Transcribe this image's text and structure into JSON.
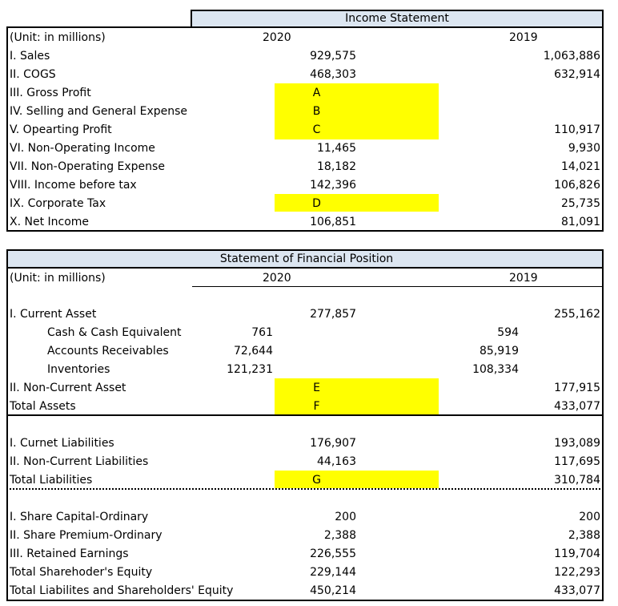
{
  "income": {
    "title": "Income Statement",
    "unit": "(Unit: in millions)",
    "col2020": "2020",
    "col2019": "2019",
    "rows": [
      {
        "label": "I. Sales",
        "v2020": "929,575",
        "v2019": "1,063,886"
      },
      {
        "label": "II. COGS",
        "v2020": "468,303",
        "v2019": "632,914"
      },
      {
        "label": "III. Gross Profit",
        "v2020": "A",
        "v2019": ""
      },
      {
        "label": "IV. Selling and General Expense",
        "v2020": "B",
        "v2019": ""
      },
      {
        "label": "V. Opearting Profit",
        "v2020": "C",
        "v2019": "110,917"
      },
      {
        "label": "VI. Non-Operating Income",
        "v2020": "11,465",
        "v2019": "9,930"
      },
      {
        "label": "VII. Non-Operating Expense",
        "v2020": "18,182",
        "v2019": "14,021"
      },
      {
        "label": "VIII. Income before tax",
        "v2020": "142,396",
        "v2019": "106,826"
      },
      {
        "label": "IX. Corporate Tax",
        "v2020": "D",
        "v2019": "25,735"
      },
      {
        "label": "X. Net Income",
        "v2020": "106,851",
        "v2019": "81,091"
      }
    ]
  },
  "position": {
    "title": "Statement of Financial Position",
    "unit": "(Unit: in millions)",
    "col2020": "2020",
    "col2019": "2019",
    "assets": [
      {
        "label": "I. Current Asset",
        "v2020": "277,857",
        "v2019": "255,162"
      },
      {
        "label": "Cash & Cash Equivalent",
        "sub2020": "761",
        "sub2019": "594"
      },
      {
        "label": "Accounts Receivables",
        "sub2020": "72,644",
        "sub2019": "85,919"
      },
      {
        "label": "Inventories",
        "sub2020": "121,231",
        "sub2019": "108,334"
      },
      {
        "label": "II. Non-Current Asset",
        "v2020": "E",
        "v2019": "177,915"
      },
      {
        "label": "Total Assets",
        "v2020": "F",
        "v2019": "433,077"
      }
    ],
    "liabilities": [
      {
        "label": "I. Curnet Liabilities",
        "v2020": "176,907",
        "v2019": "193,089"
      },
      {
        "label": "II. Non-Current Liabilities",
        "v2020": "44,163",
        "v2019": "117,695"
      },
      {
        "label": "Total Liabilities",
        "v2020": "G",
        "v2019": "310,784"
      }
    ],
    "equity": [
      {
        "label": "I. Share Capital-Ordinary",
        "v2020": "200",
        "v2019": "200"
      },
      {
        "label": "II. Share Premium-Ordinary",
        "v2020": "2,388",
        "v2019": "2,388"
      },
      {
        "label": "III. Retained Earnings",
        "v2020": "226,555",
        "v2019": "119,704"
      },
      {
        "label": "Total Sharehoder's Equity",
        "v2020": "229,144",
        "v2019": "122,293"
      },
      {
        "label": "Total Liabilites and Shareholders' Equity",
        "v2020": "450,214",
        "v2019": "433,077"
      }
    ]
  },
  "highlight_color": "#ffff00",
  "header_fill": "#dce6f1"
}
